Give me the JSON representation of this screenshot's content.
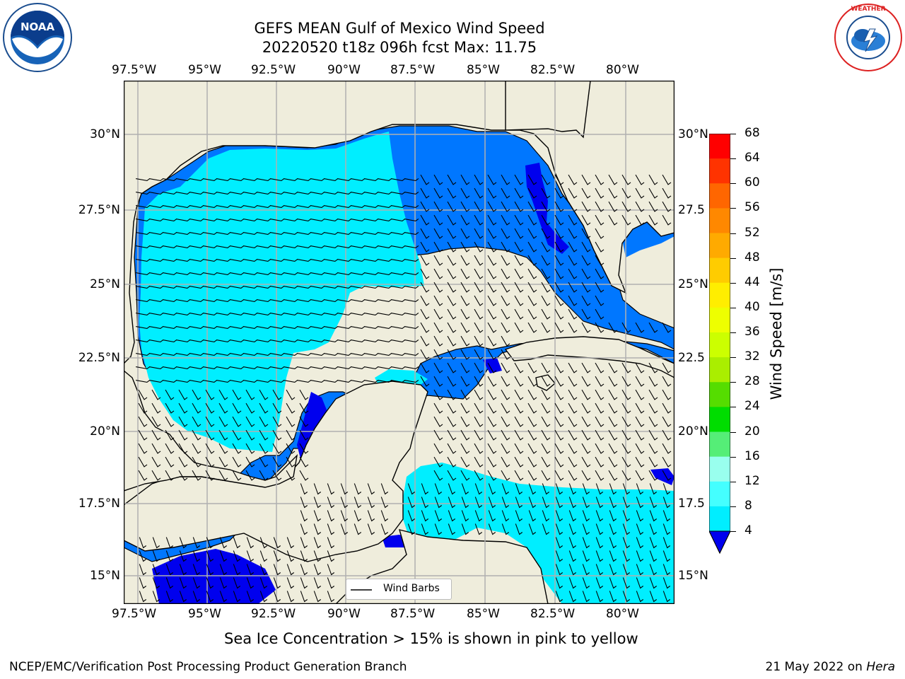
{
  "title_line1": "GEFS MEAN Gulf of Mexico Wind Speed",
  "title_line2": "20220520 t18z 096h fcst   Max: 11.75",
  "logos": {
    "noaa": {
      "icon": "noaa-logo",
      "text": "NOAA",
      "ring_text": "NATIONAL OCEANIC AND ATMOSPHERIC ADMINISTRATION · U.S. DEPARTMENT OF COMMERCE"
    },
    "nws": {
      "icon": "nws-logo",
      "ring_text": "NATIONAL WEATHER SERVICE"
    }
  },
  "lon_ticks": [
    "97.5°W",
    "95°W",
    "92.5°W",
    "90°W",
    "87.5°W",
    "85°W",
    "82.5°W",
    "80°W"
  ],
  "lat_ticks_left": [
    "30°N",
    "27.5°N",
    "25°N",
    "22.5°N",
    "20°N",
    "17.5°N",
    "15°N"
  ],
  "lat_ticks_right": [
    "30°N",
    "27.5",
    "25°N",
    "22.5",
    "20°N",
    "17.5",
    "15°N"
  ],
  "colorbar": {
    "label": "Wind Speed [m/s]",
    "ticks": [
      "68",
      "64",
      "60",
      "56",
      "52",
      "48",
      "44",
      "40",
      "36",
      "32",
      "28",
      "24",
      "20",
      "16",
      "12",
      "8",
      "4"
    ],
    "colors": [
      "#ff0000",
      "#ff3300",
      "#ff6600",
      "#ff8800",
      "#ffaa00",
      "#ffcc00",
      "#ffee00",
      "#eeff00",
      "#ccff00",
      "#aaee00",
      "#55dd00",
      "#00dd00",
      "#55ee77",
      "#99ffee",
      "#44ffff",
      "#00eeff",
      "#0077ff"
    ],
    "under_color": "#0000ee"
  },
  "legend": {
    "label": "Wind Barbs"
  },
  "note": "Sea Ice Concentration > 15% is shown in pink to yellow",
  "footer_left": "NCEP/EMC/Verification Post Processing Product Generation Branch",
  "footer_right_date": "21 May 2022 on ",
  "footer_right_host": "Hera",
  "map_colors": {
    "land": "#efeddc",
    "band_4_8": "#0077ff",
    "band_8_12": "#00eeff",
    "under_4": "#0000ee",
    "grid": "#b0b0b0"
  }
}
